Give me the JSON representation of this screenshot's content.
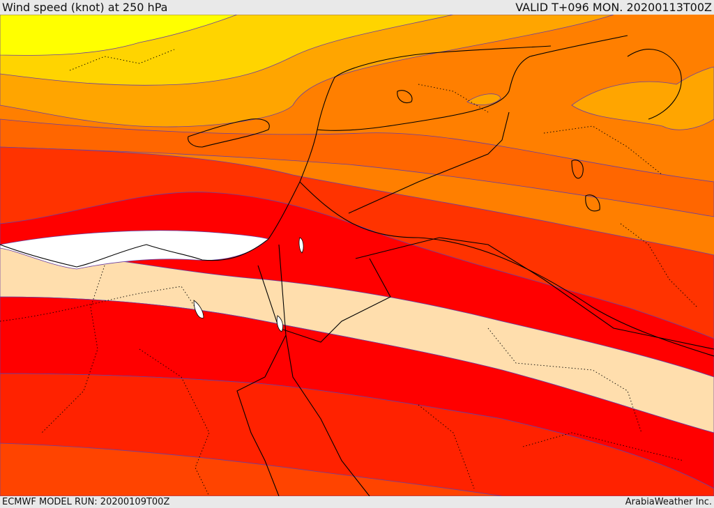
{
  "header": {
    "title": "Wind speed (knot) at 250 hPa",
    "valid": "VALID T+096 MON. 20200113T00Z"
  },
  "footer": {
    "model_run": "ECMWF MODEL RUN: 20200109T00Z",
    "credit": "ArabiaWeather Inc."
  },
  "map": {
    "colors": {
      "band_yellow": "#ffff00",
      "band_gold": "#ffd400",
      "band_orange_light": "#ffa500",
      "band_orange": "#ff7f00",
      "band_orange_dark": "#ff6600",
      "band_red_orange": "#ff3300",
      "band_red": "#ff0000",
      "band_pale": "#ffdead",
      "contour_line": "#6a3fa0",
      "coastline": "#000000"
    }
  }
}
